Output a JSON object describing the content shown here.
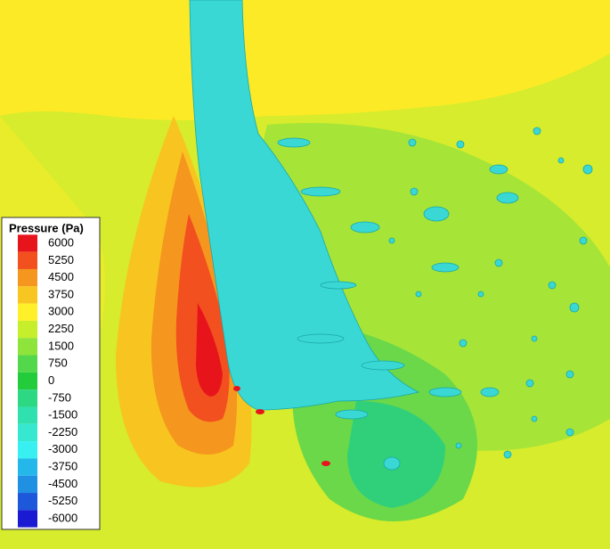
{
  "chart_data": {
    "type": "contour",
    "legend": {
      "title": "Pressure (Pa)",
      "levels": [
        6000,
        5250,
        4500,
        3750,
        3000,
        2250,
        1500,
        750,
        0,
        -750,
        -1500,
        -2250,
        -3000,
        -3750,
        -4500,
        -5250,
        -6000
      ],
      "colors": [
        "#e8141c",
        "#f2501e",
        "#f5961e",
        "#f8c620",
        "#fff02a",
        "#c6ee2a",
        "#8ee43a",
        "#52d84a",
        "#22cc3a",
        "#2cd882",
        "#30e0ae",
        "#36e8d0",
        "#38f0f2",
        "#24b8ea",
        "#2090e2",
        "#1e58da",
        "#1a1ad2"
      ]
    }
  }
}
